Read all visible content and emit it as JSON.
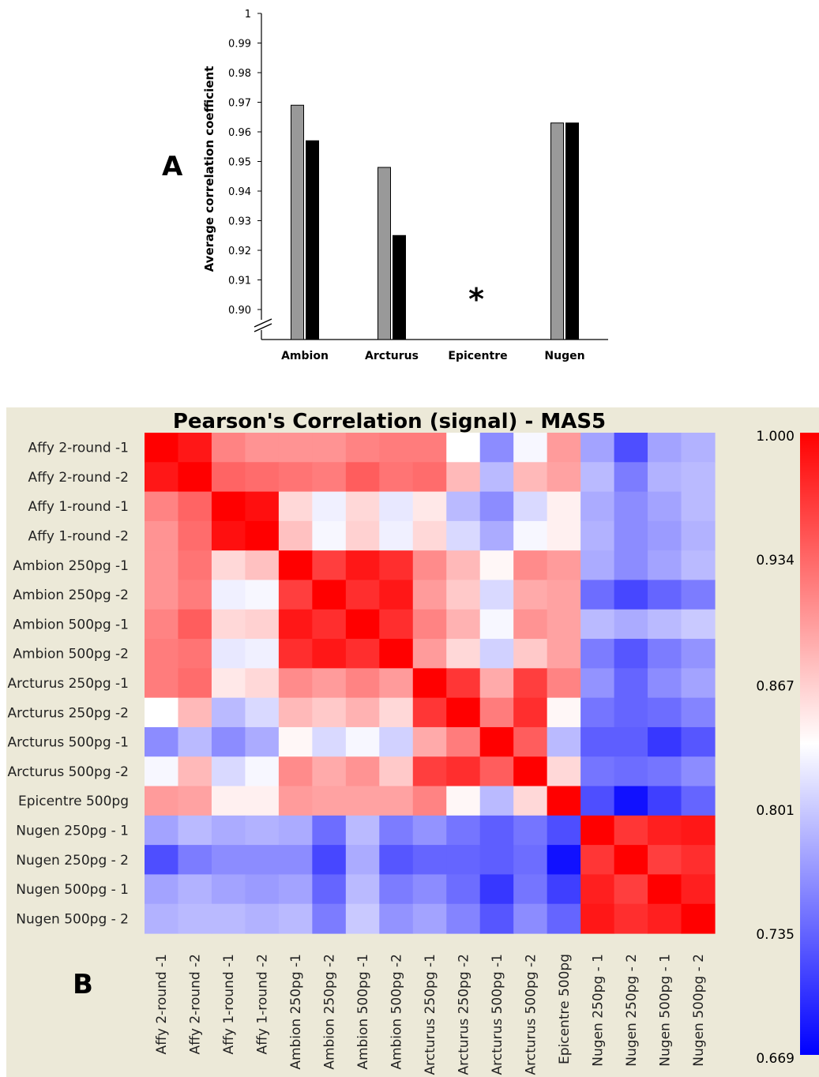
{
  "panel_a_letter": "A",
  "panel_b_letter": "B",
  "colors": {
    "bar_grey": "#999999",
    "bar_black": "#000000",
    "heatmap_bg": "#ece9d8",
    "low": "#0000ff",
    "mid": "#ffffff",
    "high": "#ff0000"
  },
  "chart_data": [
    {
      "type": "bar",
      "title": "",
      "xlabel": "",
      "ylabel": "Average correlation coefficient",
      "ylim": [
        0.9,
        1.0
      ],
      "axis_break": true,
      "yticks": [
        "1",
        "0.99",
        "0.98",
        "0.97",
        "0.96",
        "0.95",
        "0.94",
        "0.93",
        "0.92",
        "0.91",
        "0.90"
      ],
      "categories": [
        "Ambion",
        "Arcturus",
        "Epicentre",
        "Nugen"
      ],
      "series": [
        {
          "color": "#999999",
          "values": [
            0.969,
            0.948,
            null,
            0.963
          ]
        },
        {
          "color": "#000000",
          "values": [
            0.957,
            0.925,
            null,
            0.963
          ]
        }
      ],
      "annotations": [
        {
          "category": "Epicentre",
          "text": "*"
        }
      ]
    },
    {
      "type": "heatmap",
      "title": "Pearson's Correlation (signal) - MAS5",
      "row_labels": [
        "Affy 2-round -1",
        "Affy 2-round -2",
        "Affy 1-round -1",
        "Affy 1-round -2",
        "Ambion 250pg -1",
        "Ambion 250pg -2",
        "Ambion 500pg -1",
        "Ambion 500pg -2",
        "Arcturus 250pg -1",
        "Arcturus 250pg -2",
        "Arcturus 500pg -1",
        "Arcturus 500pg -2",
        "Epicentre 500pg",
        "Nugen 250pg - 1",
        "Nugen 250pg - 2",
        "Nugen 500pg - 1",
        "Nugen 500pg - 2"
      ],
      "col_labels": [
        "Affy 2-round -1",
        "Affy 2-round -2",
        "Affy 1-round -1",
        "Affy 1-round -2",
        "Ambion 250pg -1",
        "Ambion 250pg -2",
        "Ambion 500pg -1",
        "Ambion 500pg -2",
        "Arcturus 250pg -1",
        "Arcturus 250pg -2",
        "Arcturus 500pg -1",
        "Arcturus 500pg -2",
        "Epicentre 500pg",
        "Nugen 250pg - 1",
        "Nugen 250pg - 2",
        "Nugen 500pg - 1",
        "Nugen 500pg - 2"
      ],
      "colorbar": {
        "min": 0.669,
        "max": 1.0,
        "mid": 0.835,
        "tick_labels": [
          "1.000",
          "0.934",
          "0.867",
          "0.801",
          "0.735",
          "0.669"
        ]
      },
      "values": [
        [
          1.0,
          0.985,
          0.915,
          0.905,
          0.905,
          0.905,
          0.915,
          0.92,
          0.92,
          0.835,
          0.76,
          0.83,
          0.9,
          0.775,
          0.72,
          0.775,
          0.785
        ],
        [
          0.985,
          1.0,
          0.935,
          0.93,
          0.925,
          0.92,
          0.94,
          0.925,
          0.93,
          0.88,
          0.79,
          0.88,
          0.895,
          0.79,
          0.75,
          0.785,
          0.79
        ],
        [
          0.915,
          0.935,
          1.0,
          0.99,
          0.86,
          0.825,
          0.86,
          0.82,
          0.85,
          0.79,
          0.76,
          0.81,
          0.845,
          0.78,
          0.76,
          0.775,
          0.79
        ],
        [
          0.905,
          0.93,
          0.99,
          1.0,
          0.875,
          0.83,
          0.865,
          0.825,
          0.86,
          0.81,
          0.78,
          0.83,
          0.845,
          0.785,
          0.76,
          0.77,
          0.785
        ],
        [
          0.905,
          0.925,
          0.86,
          0.875,
          1.0,
          0.96,
          0.985,
          0.97,
          0.91,
          0.88,
          0.84,
          0.91,
          0.9,
          0.78,
          0.76,
          0.775,
          0.79
        ],
        [
          0.905,
          0.92,
          0.825,
          0.83,
          0.96,
          1.0,
          0.97,
          0.985,
          0.9,
          0.87,
          0.81,
          0.89,
          0.895,
          0.74,
          0.715,
          0.735,
          0.75
        ],
        [
          0.915,
          0.94,
          0.86,
          0.865,
          0.985,
          0.97,
          1.0,
          0.97,
          0.915,
          0.885,
          0.83,
          0.905,
          0.895,
          0.79,
          0.78,
          0.79,
          0.8
        ],
        [
          0.92,
          0.925,
          0.82,
          0.825,
          0.97,
          0.985,
          0.97,
          1.0,
          0.9,
          0.86,
          0.805,
          0.87,
          0.895,
          0.75,
          0.725,
          0.75,
          0.765
        ],
        [
          0.92,
          0.93,
          0.85,
          0.86,
          0.91,
          0.9,
          0.915,
          0.9,
          1.0,
          0.965,
          0.89,
          0.96,
          0.915,
          0.765,
          0.735,
          0.76,
          0.775
        ],
        [
          0.835,
          0.88,
          0.79,
          0.81,
          0.88,
          0.87,
          0.885,
          0.86,
          0.965,
          1.0,
          0.92,
          0.97,
          0.84,
          0.745,
          0.735,
          0.74,
          0.755
        ],
        [
          0.76,
          0.79,
          0.76,
          0.78,
          0.84,
          0.81,
          0.83,
          0.805,
          0.89,
          0.92,
          1.0,
          0.94,
          0.79,
          0.73,
          0.73,
          0.705,
          0.725
        ],
        [
          0.83,
          0.88,
          0.81,
          0.83,
          0.91,
          0.89,
          0.905,
          0.87,
          0.96,
          0.97,
          0.94,
          1.0,
          0.86,
          0.745,
          0.74,
          0.745,
          0.76
        ],
        [
          0.9,
          0.895,
          0.845,
          0.845,
          0.9,
          0.895,
          0.895,
          0.895,
          0.915,
          0.84,
          0.79,
          0.86,
          1.0,
          0.72,
          0.68,
          0.71,
          0.735
        ],
        [
          0.775,
          0.79,
          0.78,
          0.785,
          0.78,
          0.74,
          0.79,
          0.75,
          0.765,
          0.745,
          0.73,
          0.745,
          0.72,
          1.0,
          0.965,
          0.98,
          0.985
        ],
        [
          0.72,
          0.75,
          0.76,
          0.76,
          0.76,
          0.715,
          0.78,
          0.725,
          0.735,
          0.735,
          0.73,
          0.74,
          0.68,
          0.965,
          1.0,
          0.96,
          0.97
        ],
        [
          0.775,
          0.785,
          0.775,
          0.77,
          0.775,
          0.735,
          0.79,
          0.75,
          0.76,
          0.74,
          0.705,
          0.745,
          0.71,
          0.98,
          0.96,
          1.0,
          0.98
        ],
        [
          0.785,
          0.79,
          0.79,
          0.785,
          0.79,
          0.75,
          0.8,
          0.765,
          0.775,
          0.755,
          0.725,
          0.76,
          0.735,
          0.985,
          0.97,
          0.98,
          1.0
        ]
      ]
    }
  ]
}
